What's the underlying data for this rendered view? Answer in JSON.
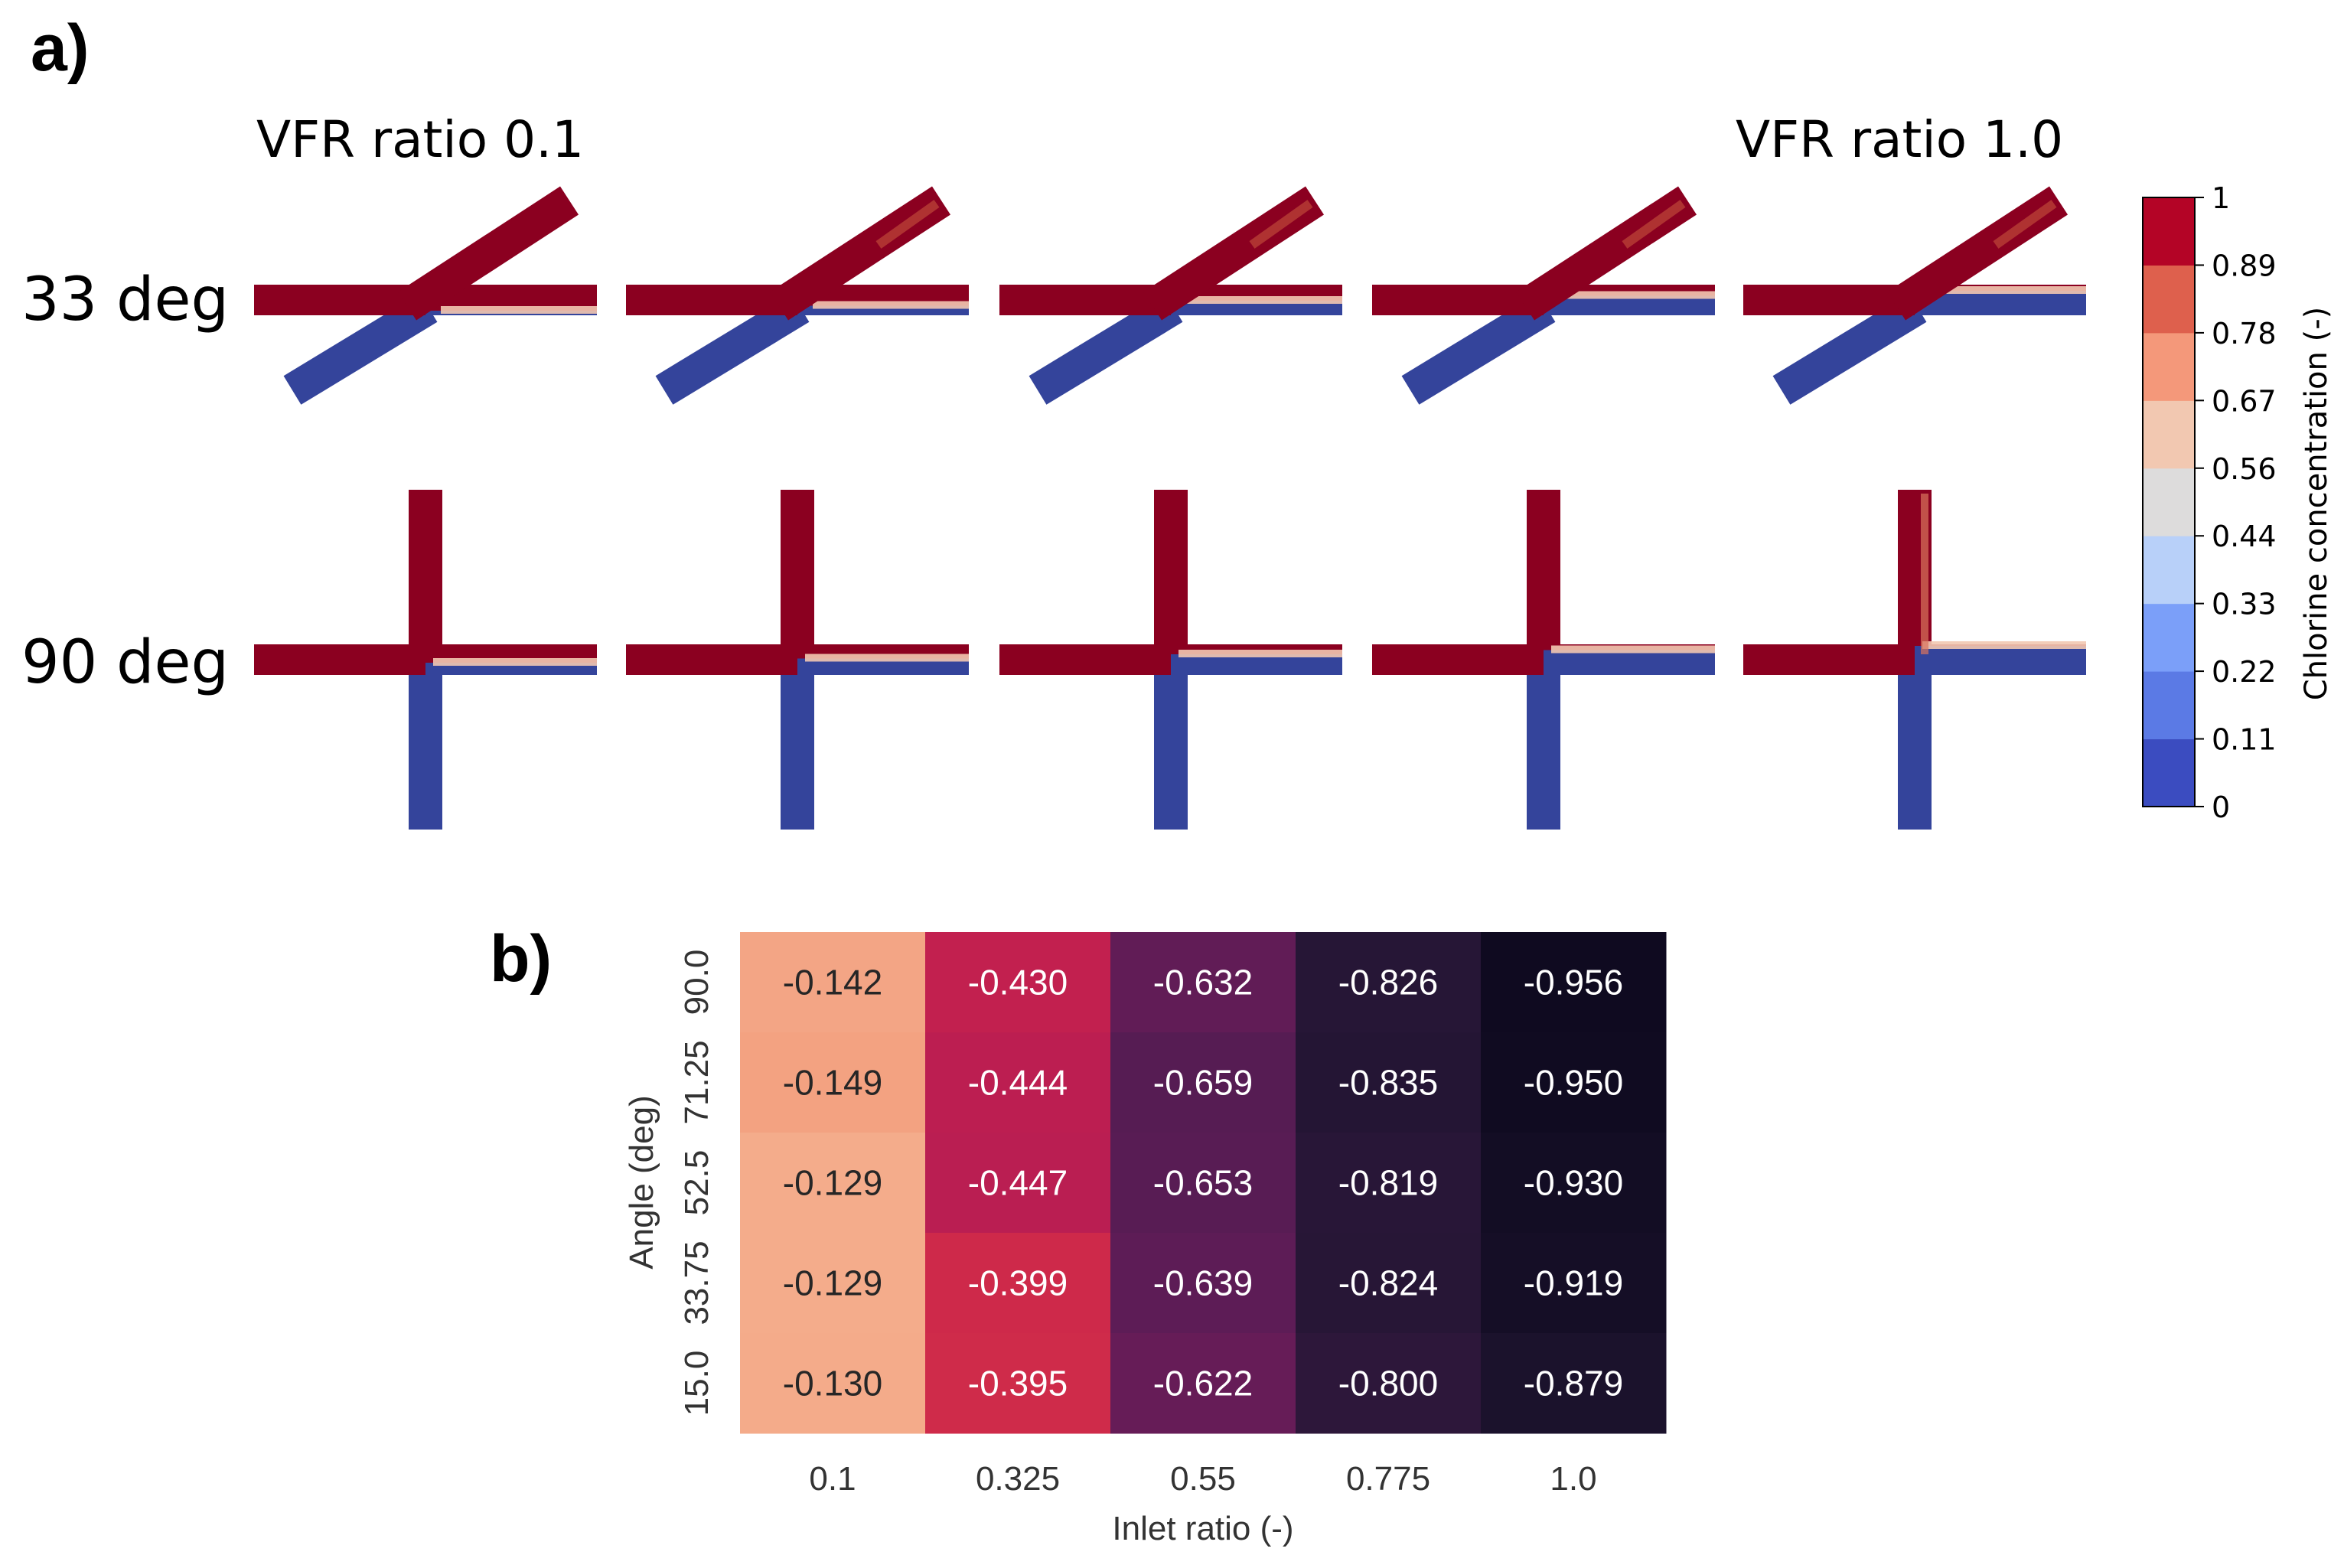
{
  "panel_a": {
    "label": "a)",
    "col_titles": {
      "left": "VFR ratio 0.1",
      "right": "VFR ratio 1.0"
    },
    "row_titles": [
      "33 deg",
      "90 deg"
    ],
    "colorbar": {
      "label": "Chlorine concentration (-)",
      "ticks": [
        "1",
        "0.89",
        "0.78",
        "0.67",
        "0.56",
        "0.44",
        "0.33",
        "0.22",
        "0.11",
        "0"
      ],
      "colors": [
        "#3b4cc0",
        "#5b7ae5",
        "#7b9ff9",
        "#b8d0f9",
        "#dddcdc",
        "#f2c8b1",
        "#f4987a",
        "#de604d",
        "#b40426"
      ]
    },
    "pipe_colors": {
      "hot": "#8b0020",
      "cold": "#34449b"
    }
  },
  "chart_data": {
    "type": "heatmap",
    "label": "b)",
    "xlabel": "Inlet ratio (-)",
    "ylabel": "Angle (deg)",
    "x": [
      "0.1",
      "0.325",
      "0.55",
      "0.775",
      "1.0"
    ],
    "y": [
      "90.0",
      "71.25",
      "52.5",
      "33.75",
      "15.0"
    ],
    "values": [
      [
        "-0.142",
        "-0.430",
        "-0.632",
        "-0.826",
        "-0.956"
      ],
      [
        "-0.149",
        "-0.444",
        "-0.659",
        "-0.835",
        "-0.950"
      ],
      [
        "-0.129",
        "-0.447",
        "-0.653",
        "-0.819",
        "-0.930"
      ],
      [
        "-0.129",
        "-0.399",
        "-0.639",
        "-0.824",
        "-0.919"
      ],
      [
        "-0.130",
        "-0.395",
        "-0.622",
        "-0.800",
        "-0.879"
      ]
    ],
    "colormap": [
      "#f4b08f",
      "#f07c5d",
      "#e83f3f",
      "#c01e50",
      "#8f1a5f",
      "#5a1c55",
      "#3a1a44",
      "#1f1430",
      "#0e0a1f"
    ],
    "vrange": [
      -0.96,
      -0.12
    ]
  }
}
